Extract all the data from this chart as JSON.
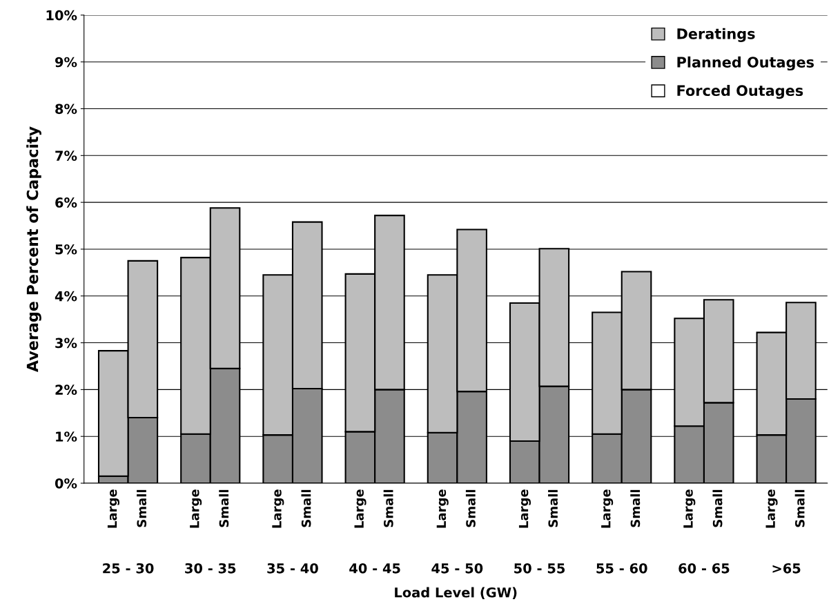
{
  "chart_data": {
    "type": "bar",
    "stacked": true,
    "xlabel": "Load Level (GW)",
    "ylabel": "Average Percent of Capacity",
    "categories": [
      "Large",
      "Small",
      "Large",
      "Small",
      "Large",
      "Small",
      "Large",
      "Small",
      "Large",
      "Small",
      "Large",
      "Small",
      "Large",
      "Small",
      "Large",
      "Small",
      "Large",
      "Small"
    ],
    "series": [
      {
        "name": "Forced Outages",
        "color": "#ffffff",
        "values": [
          0,
          0,
          0,
          0,
          0,
          0,
          0,
          0,
          0,
          0,
          0,
          0,
          0,
          0,
          0,
          0,
          0,
          0
        ]
      },
      {
        "name": "Planned Outages",
        "color": "#8c8c8c",
        "values": [
          0.15,
          1.4,
          1.05,
          2.45,
          1.03,
          2.02,
          1.1,
          2.0,
          1.08,
          1.96,
          0.9,
          2.07,
          1.05,
          2.0,
          1.22,
          1.72,
          1.03,
          1.8
        ]
      },
      {
        "name": "Deratings",
        "color": "#bdbdbd",
        "values": [
          2.68,
          3.35,
          3.77,
          3.43,
          3.42,
          3.56,
          3.37,
          3.72,
          3.37,
          3.46,
          2.95,
          2.94,
          2.6,
          2.52,
          2.3,
          2.2,
          2.19,
          2.06
        ]
      }
    ],
    "annotations": [
      "25 - 30",
      "30 - 35",
      "35 - 40",
      "40 - 45",
      "45 - 50",
      "50 - 55",
      "55 - 60",
      "60 - 65",
      ">65"
    ],
    "ylim": [
      0,
      10
    ],
    "yticks": [
      {
        "value": 0,
        "label": "0%"
      },
      {
        "value": 1,
        "label": "1%"
      },
      {
        "value": 2,
        "label": "2%"
      },
      {
        "value": 3,
        "label": "3%"
      },
      {
        "value": 4,
        "label": "4%"
      },
      {
        "value": 5,
        "label": "5%"
      },
      {
        "value": 6,
        "label": "6%"
      },
      {
        "value": 7,
        "label": "7%"
      },
      {
        "value": 8,
        "label": "8%"
      },
      {
        "value": 9,
        "label": "9%"
      },
      {
        "value": 10,
        "label": "10%"
      }
    ],
    "grid": "y",
    "legend": "top right"
  }
}
